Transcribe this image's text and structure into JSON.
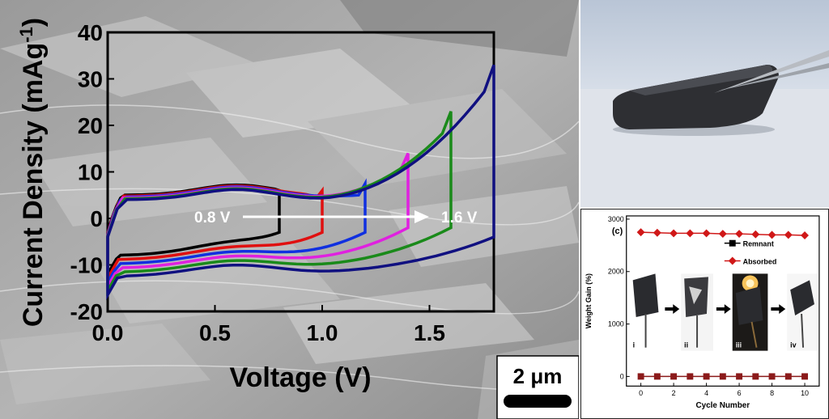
{
  "scale_bar": {
    "label": "2 μm"
  },
  "photo": {
    "description_icon": "tweezers-holding-foam-icon"
  },
  "chart_data": [
    {
      "type": "line",
      "xlabel": "Voltage (V)",
      "ylabel": "Current Density (mAg",
      "ylabel_sup": "-1",
      "ylabel_close": ")",
      "xlim": [
        0.0,
        1.8
      ],
      "ylim": [
        -20,
        40
      ],
      "xticks": [
        "0.0",
        "0.5",
        "1.0",
        "1.5"
      ],
      "yticks": [
        "-20",
        "-10",
        "0",
        "10",
        "20",
        "30",
        "40"
      ],
      "annotations": {
        "start": "0.8 V",
        "end": "1.6 V"
      },
      "series": [
        {
          "color": "#000000",
          "vmax": 0.8,
          "values": {
            "upper_end": 6,
            "lower_end": -3
          }
        },
        {
          "color": "#e01010",
          "vmax": 1.0,
          "values": {
            "upper_end": 6,
            "lower_end": -3
          }
        },
        {
          "color": "#1030e0",
          "vmax": 1.2,
          "values": {
            "upper_end": 7.5,
            "lower_end": -3
          }
        },
        {
          "color": "#e020e0",
          "vmax": 1.4,
          "values": {
            "upper_end": 14,
            "lower_end": -2
          }
        },
        {
          "color": "#1a8a1a",
          "vmax": 1.6,
          "values": {
            "upper_end": 23,
            "lower_end": -2
          }
        },
        {
          "color": "#101080",
          "vmax": 1.8,
          "values": {
            "upper_end": 33,
            "lower_end": -4
          }
        }
      ]
    },
    {
      "type": "scatter",
      "panel_label": "(c)",
      "xlabel": "Cycle Number",
      "ylabel": "Weight Gain (%)",
      "xlim": [
        0,
        10
      ],
      "ylim": [
        0,
        3000
      ],
      "xticks": [
        "0",
        "2",
        "4",
        "6",
        "8",
        "10"
      ],
      "yticks": [
        "0",
        "1000",
        "2000",
        "3000"
      ],
      "series": [
        {
          "name": "Remnant",
          "color": "#8b1a1a",
          "marker": "square",
          "x": [
            0,
            1,
            2,
            3,
            4,
            5,
            6,
            7,
            8,
            9,
            10
          ],
          "values": [
            0,
            0,
            0,
            0,
            0,
            0,
            0,
            0,
            0,
            0,
            0
          ]
        },
        {
          "name": "Absorbed",
          "color": "#d01818",
          "marker": "diamond",
          "x": [
            0,
            1,
            2,
            3,
            4,
            5,
            6,
            7,
            8,
            9,
            10
          ],
          "values": [
            2750,
            2740,
            2730,
            2730,
            2730,
            2720,
            2720,
            2710,
            2700,
            2700,
            2690
          ]
        }
      ],
      "image_labels": [
        "i",
        "ii",
        "iii",
        "iv"
      ]
    }
  ]
}
